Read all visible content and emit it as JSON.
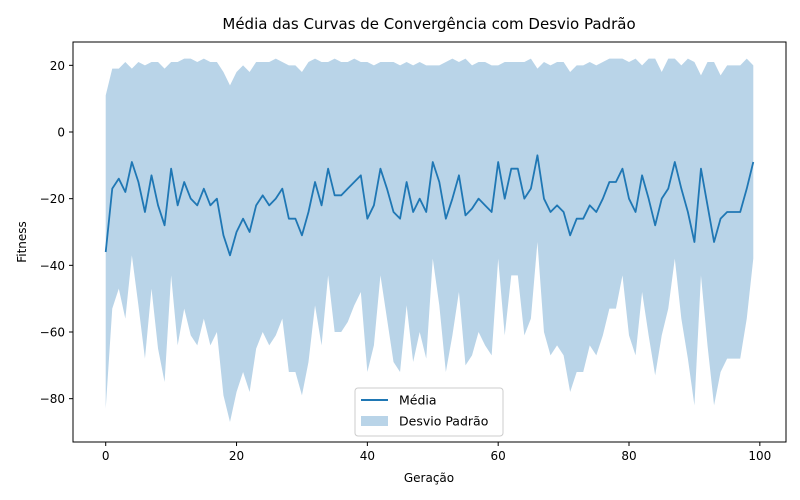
{
  "chart_data": {
    "type": "line",
    "title": "Média das Curvas de Convergência com Desvio Padrão",
    "xlabel": "Geração",
    "ylabel": "Fitness",
    "xlim": [
      -5,
      104
    ],
    "ylim": [
      -93,
      27
    ],
    "xticks": [
      0,
      20,
      40,
      60,
      80,
      100
    ],
    "yticks": [
      -80,
      -60,
      -40,
      -20,
      0,
      20
    ],
    "grid": false,
    "legend_position": "lower-center",
    "colors": {
      "line": "#1f77b4",
      "band": "#b9d4e8"
    },
    "series": [
      {
        "name": "Média",
        "kind": "line",
        "x": [
          0,
          1,
          2,
          3,
          4,
          5,
          6,
          7,
          8,
          9,
          10,
          11,
          12,
          13,
          14,
          15,
          16,
          17,
          18,
          19,
          20,
          21,
          22,
          23,
          24,
          25,
          26,
          27,
          28,
          29,
          30,
          31,
          32,
          33,
          34,
          35,
          36,
          37,
          38,
          39,
          40,
          41,
          42,
          43,
          44,
          45,
          46,
          47,
          48,
          49,
          50,
          51,
          52,
          53,
          54,
          55,
          56,
          57,
          58,
          59,
          60,
          61,
          62,
          63,
          64,
          65,
          66,
          67,
          68,
          69,
          70,
          71,
          72,
          73,
          74,
          75,
          76,
          77,
          78,
          79,
          80,
          81,
          82,
          83,
          84,
          85,
          86,
          87,
          88,
          89,
          90,
          91,
          92,
          93,
          94,
          95,
          96,
          97,
          98,
          99
        ],
        "values": [
          -36,
          -17,
          -14,
          -18,
          -9,
          -15,
          -24,
          -13,
          -22,
          -28,
          -11,
          -22,
          -15,
          -20,
          -22,
          -17,
          -22,
          -20,
          -31,
          -37,
          -30,
          -26,
          -30,
          -22,
          -19,
          -22,
          -20,
          -17,
          -26,
          -26,
          -31,
          -24,
          -15,
          -22,
          -11,
          -19,
          -19,
          -17,
          -15,
          -13,
          -26,
          -22,
          -11,
          -17,
          -24,
          -26,
          -15,
          -24,
          -20,
          -24,
          -9,
          -15,
          -26,
          -20,
          -13,
          -25,
          -23,
          -20,
          -22,
          -24,
          -9,
          -20,
          -11,
          -11,
          -20,
          -17,
          -7,
          -20,
          -24,
          -22,
          -24,
          -31,
          -26,
          -26,
          -22,
          -24,
          -20,
          -15,
          -15,
          -11,
          -20,
          -24,
          -13,
          -20,
          -28,
          -20,
          -17,
          -9,
          -17,
          -24,
          -33,
          -11,
          -22,
          -33,
          -26,
          -24,
          -24,
          -24,
          -17,
          -9
        ]
      },
      {
        "name": "Desvio Padrão",
        "kind": "band",
        "upper": [
          11,
          19,
          19,
          21,
          19,
          21,
          20,
          21,
          21,
          19,
          21,
          21,
          22,
          22,
          21,
          22,
          21,
          21,
          18,
          14,
          18,
          20,
          18,
          21,
          21,
          21,
          22,
          21,
          20,
          20,
          18,
          21,
          22,
          21,
          21,
          22,
          21,
          21,
          22,
          21,
          21,
          20,
          21,
          21,
          21,
          20,
          21,
          20,
          21,
          20,
          20,
          20,
          21,
          22,
          21,
          22,
          20,
          21,
          21,
          20,
          20,
          21,
          21,
          21,
          21,
          22,
          19,
          21,
          20,
          21,
          21,
          18,
          20,
          20,
          21,
          20,
          21,
          22,
          22,
          22,
          21,
          22,
          20,
          22,
          22,
          18,
          22,
          22,
          20,
          22,
          21,
          17,
          21,
          21,
          17,
          20,
          20,
          20,
          22,
          20
        ],
        "lower": [
          -83,
          -53,
          -47,
          -56,
          -37,
          -52,
          -68,
          -47,
          -65,
          -75,
          -43,
          -64,
          -53,
          -61,
          -64,
          -56,
          -64,
          -60,
          -79,
          -87,
          -78,
          -72,
          -78,
          -65,
          -60,
          -64,
          -61,
          -56,
          -72,
          -72,
          -79,
          -69,
          -52,
          -64,
          -43,
          -60,
          -60,
          -57,
          -52,
          -48,
          -72,
          -64,
          -43,
          -56,
          -69,
          -72,
          -52,
          -69,
          -60,
          -68,
          -38,
          -52,
          -72,
          -61,
          -48,
          -70,
          -67,
          -60,
          -64,
          -67,
          -38,
          -61,
          -43,
          -43,
          -61,
          -56,
          -33,
          -60,
          -67,
          -64,
          -67,
          -78,
          -72,
          -72,
          -64,
          -67,
          -61,
          -53,
          -53,
          -43,
          -61,
          -67,
          -48,
          -61,
          -73,
          -61,
          -53,
          -38,
          -56,
          -68,
          -82,
          -43,
          -64,
          -82,
          -72,
          -68,
          -68,
          -68,
          -56,
          -38
        ]
      }
    ]
  }
}
